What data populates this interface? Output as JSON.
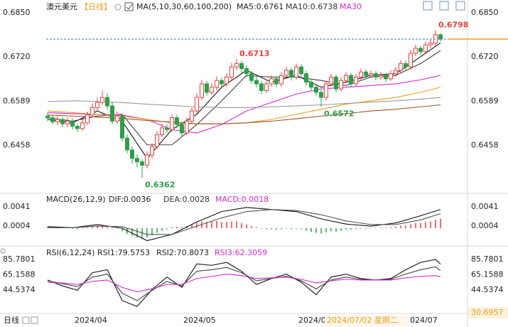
{
  "chart_data": [
    {
      "type": "candlestick",
      "title": "澳元美元",
      "period": "【日线】",
      "legend": [
        {
          "text": "MA(5,10,30,60,100,200)",
          "color": "#222222"
        },
        {
          "text": "MA5:0.6761",
          "color": "#222222"
        },
        {
          "text": "MA10:0.6738",
          "color": "#333333"
        },
        {
          "text": "MA30",
          "color": "#d42ad4"
        }
      ],
      "up_color": "#e8413e",
      "down_color": "#2e9e48",
      "ylim": [
        0.6321,
        0.6877
      ],
      "yticks": [
        {
          "value": 0.685,
          "label": "0.6850"
        },
        {
          "value": 0.672,
          "label": "0.6720"
        },
        0.6589,
        0.6458
      ],
      "candles": [
        [
          0.6545,
          0.6555,
          0.653,
          0.654
        ],
        [
          0.654,
          0.6548,
          0.652,
          0.6528
        ],
        [
          0.6528,
          0.6545,
          0.6518,
          0.6535
        ],
        [
          0.6535,
          0.6542,
          0.6512,
          0.6522
        ],
        [
          0.6522,
          0.654,
          0.6512,
          0.653
        ],
        [
          0.653,
          0.6538,
          0.6505,
          0.6515
        ],
        [
          0.6515,
          0.6522,
          0.6498,
          0.6508
        ],
        [
          0.6508,
          0.6535,
          0.65,
          0.6525
        ],
        [
          0.6525,
          0.6558,
          0.6518,
          0.6548
        ],
        [
          0.6548,
          0.6582,
          0.654,
          0.657
        ],
        [
          0.657,
          0.6598,
          0.656,
          0.6585
        ],
        [
          0.6585,
          0.662,
          0.6578,
          0.66
        ],
        [
          0.66,
          0.6612,
          0.6565,
          0.6575
        ],
        [
          0.6575,
          0.6585,
          0.652,
          0.653
        ],
        [
          0.653,
          0.6558,
          0.6522,
          0.6545
        ],
        [
          0.6545,
          0.655,
          0.647,
          0.648
        ],
        [
          0.648,
          0.649,
          0.6435,
          0.6445
        ],
        [
          0.6445,
          0.6455,
          0.6405,
          0.642
        ],
        [
          0.642,
          0.6432,
          0.6395,
          0.641
        ],
        [
          0.641,
          0.6418,
          0.6362,
          0.64
        ],
        [
          0.64,
          0.644,
          0.639,
          0.643
        ],
        [
          0.643,
          0.6465,
          0.642,
          0.6455
        ],
        [
          0.6455,
          0.65,
          0.6448,
          0.649
        ],
        [
          0.649,
          0.6522,
          0.6482,
          0.651
        ],
        [
          0.651,
          0.652,
          0.6495,
          0.6505
        ],
        [
          0.6505,
          0.655,
          0.6498,
          0.654
        ],
        [
          0.654,
          0.6548,
          0.651,
          0.652
        ],
        [
          0.652,
          0.6528,
          0.6485,
          0.6495
        ],
        [
          0.6495,
          0.654,
          0.6488,
          0.653
        ],
        [
          0.653,
          0.657,
          0.6522,
          0.656
        ],
        [
          0.656,
          0.6612,
          0.6552,
          0.66
        ],
        [
          0.66,
          0.6652,
          0.6592,
          0.664
        ],
        [
          0.664,
          0.6648,
          0.6605,
          0.6615
        ],
        [
          0.6615,
          0.6642,
          0.6608,
          0.663
        ],
        [
          0.663,
          0.6662,
          0.662,
          0.665
        ],
        [
          0.665,
          0.6658,
          0.663,
          0.664
        ],
        [
          0.664,
          0.6672,
          0.6632,
          0.666
        ],
        [
          0.666,
          0.6702,
          0.6652,
          0.669
        ],
        [
          0.669,
          0.6713,
          0.668,
          0.67
        ],
        [
          0.67,
          0.6708,
          0.6672,
          0.6685
        ],
        [
          0.6685,
          0.6695,
          0.666,
          0.667
        ],
        [
          0.667,
          0.6678,
          0.664,
          0.665
        ],
        [
          0.665,
          0.666,
          0.663,
          0.664
        ],
        [
          0.664,
          0.6648,
          0.661,
          0.662
        ],
        [
          0.662,
          0.665,
          0.6612,
          0.664
        ],
        [
          0.664,
          0.6665,
          0.6632,
          0.6655
        ],
        [
          0.6655,
          0.6662,
          0.663,
          0.664
        ],
        [
          0.664,
          0.6675,
          0.6632,
          0.6665
        ],
        [
          0.6665,
          0.669,
          0.6658,
          0.668
        ],
        [
          0.668,
          0.6688,
          0.665,
          0.666
        ],
        [
          0.666,
          0.67,
          0.6652,
          0.669
        ],
        [
          0.669,
          0.6698,
          0.666,
          0.667
        ],
        [
          0.667,
          0.6678,
          0.6635,
          0.6645
        ],
        [
          0.6645,
          0.6652,
          0.662,
          0.663
        ],
        [
          0.663,
          0.664,
          0.6605,
          0.6615
        ],
        [
          0.6615,
          0.6622,
          0.6572,
          0.66
        ],
        [
          0.66,
          0.665,
          0.6592,
          0.664
        ],
        [
          0.664,
          0.667,
          0.6632,
          0.666
        ],
        [
          0.666,
          0.6668,
          0.6615,
          0.6625
        ],
        [
          0.6625,
          0.666,
          0.6618,
          0.665
        ],
        [
          0.665,
          0.6675,
          0.6642,
          0.6665
        ],
        [
          0.6665,
          0.6672,
          0.663,
          0.664
        ],
        [
          0.664,
          0.667,
          0.6632,
          0.666
        ],
        [
          0.666,
          0.6685,
          0.6652,
          0.6675
        ],
        [
          0.6675,
          0.6682,
          0.6655,
          0.6665
        ],
        [
          0.6665,
          0.668,
          0.6658,
          0.667
        ],
        [
          0.667,
          0.6678,
          0.665,
          0.666
        ],
        [
          0.666,
          0.6675,
          0.6652,
          0.6665
        ],
        [
          0.6665,
          0.6672,
          0.6645,
          0.6655
        ],
        [
          0.6655,
          0.668,
          0.6648,
          0.667
        ],
        [
          0.667,
          0.669,
          0.6662,
          0.668
        ],
        [
          0.668,
          0.671,
          0.6672,
          0.67
        ],
        [
          0.67,
          0.6708,
          0.668,
          0.669
        ],
        [
          0.669,
          0.674,
          0.6682,
          0.673
        ],
        [
          0.673,
          0.6755,
          0.6722,
          0.6745
        ],
        [
          0.6745,
          0.6752,
          0.6725,
          0.6735
        ],
        [
          0.6735,
          0.6765,
          0.6728,
          0.6755
        ],
        [
          0.6755,
          0.677,
          0.6745,
          0.676
        ],
        [
          0.676,
          0.6798,
          0.6752,
          0.6785
        ],
        [
          0.6785,
          0.679,
          0.6765,
          0.6772
        ]
      ],
      "series": [
        {
          "color": "#111111",
          "x": [
            0,
            5,
            10,
            15,
            20,
            25,
            30,
            35,
            40,
            45,
            50,
            55,
            60,
            65,
            70,
            75,
            79
          ],
          "values": [
            0.6535,
            0.6525,
            0.656,
            0.653,
            0.642,
            0.6505,
            0.655,
            0.663,
            0.668,
            0.6645,
            0.6665,
            0.663,
            0.6645,
            0.6665,
            0.667,
            0.672,
            0.6761
          ]
        },
        {
          "color": "#444444",
          "x": [
            0,
            5,
            10,
            15,
            20,
            25,
            30,
            35,
            40,
            45,
            50,
            55,
            60,
            65,
            70,
            75,
            79
          ],
          "values": [
            0.654,
            0.653,
            0.6545,
            0.655,
            0.646,
            0.646,
            0.652,
            0.659,
            0.6665,
            0.666,
            0.666,
            0.665,
            0.6635,
            0.666,
            0.6665,
            0.67,
            0.6738
          ]
        },
        {
          "color": "#d42ad4",
          "x": [
            0,
            5,
            10,
            15,
            20,
            25,
            30,
            35,
            40,
            45,
            50,
            55,
            60,
            65,
            70,
            75,
            79
          ],
          "values": [
            0.6555,
            0.6552,
            0.655,
            0.6548,
            0.6535,
            0.6505,
            0.6495,
            0.652,
            0.656,
            0.6585,
            0.661,
            0.6625,
            0.663,
            0.6635,
            0.664,
            0.6652,
            0.6665
          ]
        },
        {
          "color": "#e8a020",
          "x": [
            0,
            5,
            10,
            15,
            20,
            25,
            30,
            35,
            40,
            45,
            50,
            55,
            60,
            65,
            70,
            75,
            79
          ],
          "values": [
            0.656,
            0.6555,
            0.655,
            0.6545,
            0.6535,
            0.6525,
            0.6522,
            0.6522,
            0.6525,
            0.6535,
            0.655,
            0.6565,
            0.658,
            0.659,
            0.66,
            0.6615,
            0.663
          ]
        },
        {
          "color": "#a0522d",
          "x": [
            0,
            5,
            10,
            15,
            20,
            25,
            30,
            35,
            40,
            45,
            50,
            55,
            60,
            65,
            70,
            75,
            79
          ],
          "values": [
            0.6548,
            0.6545,
            0.6542,
            0.6538,
            0.6532,
            0.6527,
            0.6522,
            0.6522,
            0.6525,
            0.653,
            0.6537,
            0.6545,
            0.6552,
            0.656,
            0.6565,
            0.6572,
            0.6578
          ]
        },
        {
          "color": "#999999",
          "x": [
            0,
            5,
            10,
            15,
            20,
            25,
            30,
            35,
            40,
            45,
            50,
            55,
            60,
            65,
            70,
            75,
            79
          ],
          "values": [
            0.6588,
            0.659,
            0.6588,
            0.6585,
            0.658,
            0.6576,
            0.6572,
            0.657,
            0.657,
            0.6572,
            0.6575,
            0.6578,
            0.6582,
            0.6586,
            0.659,
            0.6595,
            0.66
          ]
        }
      ],
      "last_price": 0.6772,
      "last_price_color": "#3a6fd8",
      "highs_marked": [
        0.6713,
        0.6798
      ],
      "lows_marked": [
        0.6362,
        0.6572
      ]
    },
    {
      "type": "macd",
      "legend": [
        {
          "text": "MACD(26,12,9)",
          "color": "#222222"
        },
        {
          "text": "DIF:0.0036",
          "color": "#222222"
        },
        {
          "text": "DEA:0.0028",
          "color": "#333333"
        },
        {
          "text": "MACD:0.0018",
          "color": "#d42ad4"
        }
      ],
      "ylim": [
        -0.0026,
        0.0063
      ],
      "yticks": [
        0.0041,
        0.0004
      ],
      "up_color": "#e8413e",
      "down_color": "#2e9e48",
      "histogram": [
        0.0002,
        0.0002,
        0.0001,
        0.0001,
        0.0001,
        -0.0001,
        -0.0002,
        -0.0001,
        0.0001,
        0.0003,
        0.0005,
        0.0006,
        0.0004,
        0.0001,
        -0.0001,
        -0.0006,
        -0.0011,
        -0.0015,
        -0.0018,
        -0.002,
        -0.0018,
        -0.0014,
        -0.0009,
        -0.0005,
        -0.0002,
        0.0002,
        0.0003,
        0.0002,
        0.0004,
        0.0007,
        0.001,
        0.0013,
        0.0012,
        0.0013,
        0.0014,
        0.0012,
        0.0012,
        0.0013,
        0.0013,
        0.001,
        0.0007,
        0.0004,
        0.0002,
        -0.0001,
        -0.0002,
        -0.0002,
        -0.0003,
        -0.0002,
        -0.0001,
        -0.0002,
        -0.0001,
        -0.0002,
        -0.0005,
        -0.0007,
        -0.0009,
        -0.001,
        -0.0008,
        -0.0006,
        -0.0007,
        -0.0005,
        -0.0003,
        -0.0003,
        -0.0002,
        -0.0001,
        -0.0001,
        0.0,
        0.0001,
        0.0001,
        0.0001,
        0.0002,
        0.0003,
        0.0005,
        0.0005,
        0.0008,
        0.001,
        0.001,
        0.0012,
        0.0013,
        0.0016,
        0.0018
      ],
      "series": [
        {
          "color": "#111111",
          "x": [
            0,
            5,
            10,
            15,
            20,
            25,
            30,
            35,
            40,
            45,
            50,
            55,
            60,
            65,
            70,
            75,
            79
          ],
          "values": [
            0.0003,
            0.0001,
            0.0007,
            0.0,
            -0.0024,
            -0.0012,
            0.0012,
            0.0032,
            0.004,
            0.0036,
            0.0032,
            0.0018,
            0.0008,
            0.0004,
            0.001,
            0.0024,
            0.0036
          ]
        },
        {
          "color": "#555555",
          "x": [
            0,
            5,
            10,
            15,
            20,
            25,
            30,
            35,
            40,
            45,
            50,
            55,
            60,
            65,
            70,
            75,
            79
          ],
          "values": [
            0.0001,
            0.0001,
            0.0004,
            0.0003,
            -0.0012,
            -0.0012,
            0.0004,
            0.002,
            0.0032,
            0.0036,
            0.0034,
            0.0026,
            0.0014,
            0.0007,
            0.0007,
            0.0016,
            0.0028
          ]
        }
      ]
    },
    {
      "type": "rsi",
      "legend": [
        {
          "text": "RSI(6,12,24)",
          "color": "#222222"
        },
        {
          "text": "RSI1:79.5753",
          "color": "#222222"
        },
        {
          "text": "RSI2:70.8073",
          "color": "#222222"
        },
        {
          "text": "RSI3:62.3059",
          "color": "#d42ad4"
        }
      ],
      "ylim": [
        13.4,
        100.5
      ],
      "yticks": [
        85.7801,
        65.1588,
        44.5374
      ],
      "series": [
        {
          "color": "#111111",
          "x": [
            0,
            3,
            6,
            9,
            12,
            15,
            18,
            21,
            24,
            27,
            30,
            33,
            36,
            39,
            42,
            45,
            48,
            51,
            54,
            57,
            60,
            63,
            66,
            69,
            72,
            75,
            78,
            79
          ],
          "values": [
            58,
            50,
            44,
            68,
            72,
            30,
            22,
            45,
            62,
            48,
            80,
            78,
            82,
            70,
            52,
            60,
            66,
            55,
            38,
            62,
            66,
            60,
            58,
            60,
            72,
            82,
            86,
            79.5753
          ]
        },
        {
          "color": "#444444",
          "x": [
            0,
            3,
            6,
            9,
            12,
            15,
            18,
            21,
            24,
            27,
            30,
            33,
            36,
            39,
            42,
            45,
            48,
            51,
            54,
            57,
            60,
            63,
            66,
            69,
            72,
            75,
            78,
            79
          ],
          "values": [
            57,
            53,
            49,
            62,
            66,
            40,
            30,
            44,
            56,
            50,
            70,
            72,
            75,
            68,
            57,
            60,
            63,
            57,
            46,
            58,
            62,
            59,
            58,
            59,
            66,
            72,
            76,
            70.8073
          ]
        },
        {
          "color": "#d42ad4",
          "x": [
            0,
            3,
            6,
            9,
            12,
            15,
            18,
            21,
            24,
            27,
            30,
            33,
            36,
            39,
            42,
            45,
            48,
            51,
            54,
            57,
            60,
            63,
            66,
            69,
            72,
            75,
            78,
            79
          ],
          "values": [
            55,
            54,
            52,
            56,
            58,
            48,
            42,
            46,
            52,
            52,
            60,
            63,
            66,
            64,
            60,
            61,
            62,
            59,
            54,
            57,
            59,
            58,
            58,
            58,
            61,
            63,
            64,
            62.3059
          ]
        }
      ]
    }
  ],
  "dates": [
    "2024/04",
    "2024/05",
    "2024/0",
    "024/07"
  ],
  "crosshair": {
    "date": "2024/07/02 星期二",
    "value": 30.6957
  },
  "footer": "日线"
}
